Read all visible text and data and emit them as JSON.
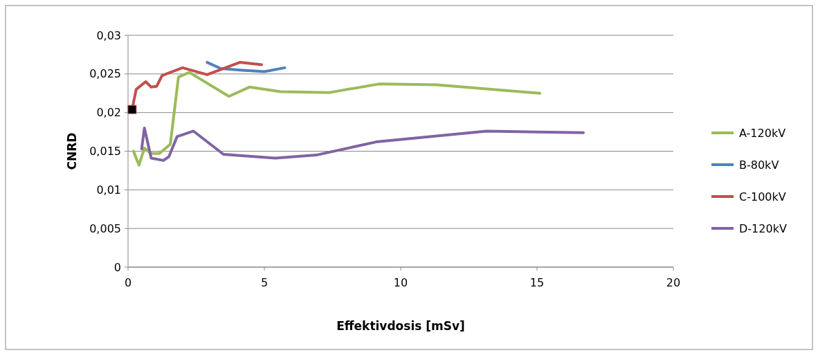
{
  "chart_data": {
    "type": "line",
    "xlabel": "Effektivdosis [mSv]",
    "ylabel": "CNRD",
    "xlim": [
      0,
      20
    ],
    "xticks": [
      0,
      5,
      10,
      15,
      20
    ],
    "ylim": [
      0,
      0.03
    ],
    "yticks": [
      {
        "value": 0,
        "label": "0"
      },
      {
        "value": 0.005,
        "label": "0,005"
      },
      {
        "value": 0.01,
        "label": "0,01"
      },
      {
        "value": 0.015,
        "label": "0,015"
      },
      {
        "value": 0.02,
        "label": "0,02"
      },
      {
        "value": 0.025,
        "label": "0,025"
      },
      {
        "value": 0.03,
        "label": "0,03"
      }
    ],
    "grid": "y",
    "legend": "right",
    "marker": "none",
    "series": [
      {
        "name": "A-120kV",
        "color": "#9bbb59",
        "x": [
          0.2,
          0.4,
          0.6,
          0.85,
          1.15,
          1.55,
          1.85,
          2.25,
          3.7,
          4.45,
          5.6,
          7.4,
          9.2,
          11.3,
          15.1
        ],
        "values": [
          0.015,
          0.0132,
          0.0154,
          0.0147,
          0.0147,
          0.0159,
          0.0246,
          0.0252,
          0.0221,
          0.0233,
          0.0227,
          0.0226,
          0.0237,
          0.0236,
          0.0225
        ]
      },
      {
        "name": "B-80kV",
        "color": "#4f81bd",
        "x": [
          2.9,
          3.4,
          4.1,
          5.0,
          5.75
        ],
        "values": [
          0.0265,
          0.0257,
          0.0255,
          0.0253,
          0.0258
        ]
      },
      {
        "name": "C-100kV",
        "color": "#c0504d",
        "x": [
          0.15,
          0.3,
          0.65,
          0.85,
          1.05,
          1.25,
          2.0,
          2.9,
          4.1,
          4.9
        ],
        "values": [
          0.0204,
          0.023,
          0.024,
          0.0233,
          0.0234,
          0.0248,
          0.0258,
          0.0249,
          0.0265,
          0.0262
        ]
      },
      {
        "name": "D-120kV",
        "color": "#8064a2",
        "x": [
          0.5,
          0.6,
          0.85,
          1.3,
          1.5,
          1.8,
          2.4,
          3.5,
          5.4,
          6.9,
          9.1,
          13.15,
          16.7
        ],
        "values": [
          0.0153,
          0.018,
          0.0141,
          0.0138,
          0.0143,
          0.0169,
          0.0176,
          0.0146,
          0.0141,
          0.0145,
          0.0162,
          0.0176,
          0.0174
        ]
      },
      {
        "type": "scatter",
        "marker": "square",
        "color": "#000000",
        "x": [
          0.15
        ],
        "values": [
          0.0204
        ]
      }
    ]
  }
}
